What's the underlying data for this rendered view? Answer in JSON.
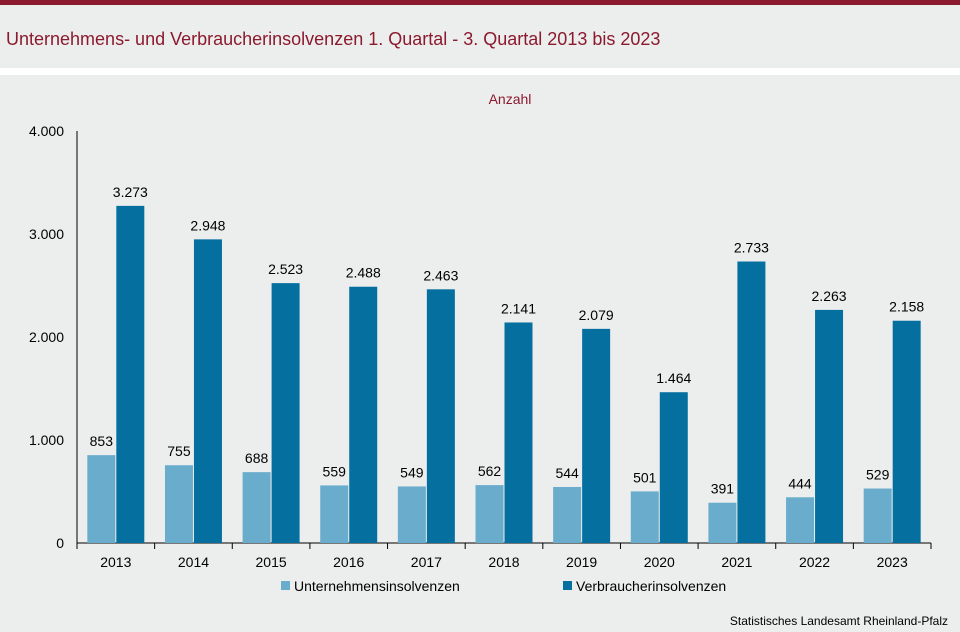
{
  "header": {
    "title": "Unternehmens- und Verbraucherinsolvenzen 1. Quartal - 3. Quartal 2013 bis 2023",
    "accent_color": "#8b1a2e"
  },
  "footer": {
    "source": "Statistisches Landesamt Rheinland-Pfalz"
  },
  "chart_data": {
    "type": "bar",
    "unit_label": "Anzahl",
    "categories": [
      "2013",
      "2014",
      "2015",
      "2016",
      "2017",
      "2018",
      "2019",
      "2020",
      "2021",
      "2022",
      "2023"
    ],
    "series": [
      {
        "name": "Unternehmensinsolvenzen",
        "color": "#6aaccc",
        "values": [
          853,
          755,
          688,
          559,
          549,
          562,
          544,
          501,
          391,
          444,
          529
        ],
        "labels": [
          "853",
          "755",
          "688",
          "559",
          "549",
          "562",
          "544",
          "501",
          "391",
          "444",
          "529"
        ]
      },
      {
        "name": "Verbraucherinsolvenzen",
        "color": "#0570a0",
        "values": [
          3273,
          2948,
          2523,
          2488,
          2463,
          2141,
          2079,
          1464,
          2733,
          2263,
          2158
        ],
        "labels": [
          "3.273",
          "2.948",
          "2.523",
          "2.488",
          "2.463",
          "2.141",
          "2.079",
          "1.464",
          "2.733",
          "2.263",
          "2.158"
        ]
      }
    ],
    "ylim": [
      0,
      4000
    ],
    "yticks": [
      0,
      1000,
      2000,
      3000,
      4000
    ],
    "ytick_labels": [
      "0",
      "1.000",
      "2.000",
      "3.000",
      "4.000"
    ],
    "grid": false,
    "legend_position": "bottom"
  }
}
